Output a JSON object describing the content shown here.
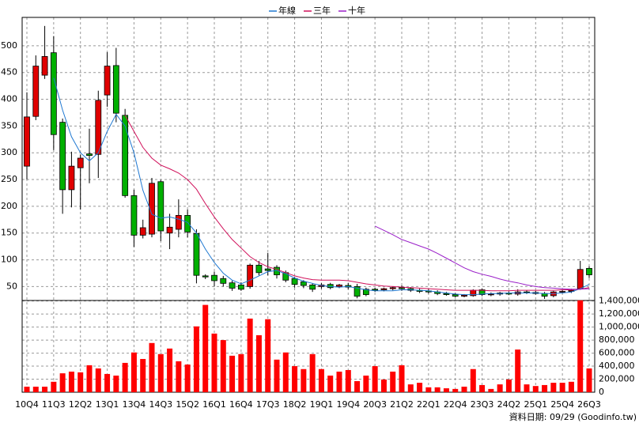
{
  "chart_data": {
    "type": "candlestick",
    "categories": [
      "10Q4",
      null,
      null,
      "11Q3",
      null,
      null,
      "12Q2",
      null,
      null,
      "13Q1",
      null,
      null,
      "13Q4",
      null,
      null,
      "14Q3",
      null,
      null,
      "15Q2",
      null,
      null,
      "16Q1",
      null,
      null,
      "16Q4",
      null,
      null,
      "17Q3",
      null,
      null,
      "18Q2",
      null,
      null,
      "19Q1",
      null,
      null,
      "19Q4",
      null,
      null,
      "20Q3",
      null,
      null,
      "21Q2",
      null,
      null,
      "22Q1",
      null,
      null,
      "22Q4",
      null,
      null,
      "23Q3",
      null,
      null,
      "24Q2",
      null,
      null,
      "25Q1",
      null,
      null,
      "25Q4",
      null,
      null,
      "26Q3"
    ],
    "open": [
      275,
      368,
      445,
      487,
      357,
      231,
      272,
      298,
      297,
      408,
      463,
      370,
      220,
      146,
      148,
      246,
      150,
      157,
      183,
      149,
      70,
      71,
      65,
      57,
      53,
      50,
      90,
      83,
      86,
      76,
      65,
      59,
      53,
      50,
      54,
      50,
      52,
      50,
      45,
      45,
      44,
      46,
      48,
      46,
      43,
      42,
      40,
      37,
      35,
      32,
      33,
      44,
      35,
      36,
      38,
      36,
      40,
      39,
      37,
      33,
      40,
      41,
      46,
      84
    ],
    "high": [
      413,
      482,
      537,
      518,
      364,
      302,
      297,
      345,
      416,
      488,
      496,
      382,
      231,
      175,
      253,
      249,
      186,
      213,
      194,
      157,
      73,
      78,
      70,
      61,
      58,
      93,
      98,
      113,
      90,
      80,
      68,
      62,
      56,
      57,
      57,
      55,
      57,
      55,
      48,
      48,
      48,
      50,
      52,
      49,
      46,
      45,
      43,
      40,
      38,
      36,
      45,
      46,
      39,
      40,
      41,
      45,
      43,
      42,
      40,
      42,
      44,
      46,
      98,
      88
    ],
    "low": [
      250,
      361,
      438,
      305,
      186,
      198,
      194,
      243,
      253,
      386,
      357,
      216,
      124,
      140,
      142,
      135,
      120,
      142,
      142,
      56,
      64,
      50,
      50,
      42,
      42,
      46,
      71,
      71,
      65,
      58,
      48,
      47,
      40,
      46,
      45,
      47,
      45,
      28,
      32,
      40,
      41,
      43,
      42,
      40,
      38,
      37,
      34,
      33,
      30,
      30,
      31,
      32,
      32,
      33,
      34,
      33,
      36,
      35,
      27,
      30,
      37,
      38,
      44,
      66
    ],
    "close": [
      367,
      462,
      480,
      334,
      231,
      275,
      290,
      295,
      398,
      462,
      374,
      220,
      146,
      160,
      243,
      154,
      161,
      183,
      152,
      71,
      68,
      61,
      56,
      47,
      45,
      90,
      76,
      80,
      72,
      62,
      54,
      52,
      45,
      53,
      48,
      53,
      49,
      32,
      35,
      43,
      46,
      48,
      46,
      43,
      41,
      40,
      37,
      35,
      32,
      34,
      43,
      35,
      36,
      38,
      36,
      40,
      39,
      37,
      32,
      40,
      41,
      43,
      82,
      72
    ],
    "up_color": "#e00000",
    "down_color": "#00b000",
    "series": [
      {
        "name": "年線",
        "color": "#1f78d1",
        "values": [
          null,
          null,
          null,
          440,
          380,
          330,
          300,
          285,
          300,
          340,
          372,
          350,
          300,
          230,
          185,
          178,
          180,
          176,
          170,
          150,
          120,
          95,
          75,
          62,
          55,
          62,
          70,
          78,
          80,
          74,
          66,
          60,
          56,
          52,
          50,
          49,
          50,
          47,
          44,
          42,
          42,
          42,
          44,
          44,
          43,
          42,
          40,
          38,
          36,
          35,
          35,
          36,
          37,
          37,
          38,
          38,
          38,
          38,
          37,
          37,
          38,
          40,
          46,
          54
        ]
      },
      {
        "name": "三年",
        "color": "#d0105a",
        "values": [
          null,
          null,
          null,
          null,
          null,
          null,
          null,
          null,
          null,
          null,
          null,
          370,
          340,
          310,
          290,
          277,
          270,
          262,
          250,
          232,
          205,
          180,
          158,
          138,
          122,
          106,
          95,
          87,
          82,
          76,
          70,
          66,
          63,
          62,
          62,
          62,
          61,
          58,
          55,
          53,
          51,
          50,
          49,
          48,
          47,
          46,
          45,
          44,
          43,
          43,
          43,
          43,
          42,
          42,
          42,
          43,
          43,
          43,
          43,
          43,
          44,
          44,
          45,
          48
        ]
      },
      {
        "name": "十年",
        "color": "#9a1fc8",
        "values": [
          null,
          null,
          null,
          null,
          null,
          null,
          null,
          null,
          null,
          null,
          null,
          null,
          null,
          null,
          null,
          null,
          null,
          null,
          null,
          null,
          null,
          null,
          null,
          null,
          null,
          null,
          null,
          null,
          null,
          null,
          null,
          null,
          null,
          null,
          null,
          null,
          null,
          null,
          null,
          163,
          155,
          147,
          138,
          132,
          126,
          120,
          112,
          103,
          94,
          85,
          78,
          73,
          69,
          64,
          60,
          57,
          53,
          50,
          48,
          47,
          46,
          45,
          45,
          46
        ]
      }
    ],
    "volume": {
      "color": "#ff0000",
      "values": [
        85000,
        85000,
        85000,
        160000,
        290000,
        316000,
        305000,
        414000,
        365000,
        280000,
        255000,
        450000,
        610000,
        510000,
        755000,
        585000,
        670000,
        475000,
        425000,
        1010000,
        1340000,
        900000,
        800000,
        560000,
        585000,
        1130000,
        875000,
        1120000,
        500000,
        610000,
        400000,
        355000,
        585000,
        355000,
        255000,
        316000,
        340000,
        170000,
        255000,
        400000,
        195000,
        316000,
        414000,
        120000,
        145000,
        75000,
        75000,
        60000,
        50000,
        85000,
        355000,
        110000,
        50000,
        120000,
        195000,
        655000,
        120000,
        95000,
        110000,
        145000,
        145000,
        160000,
        1410000,
        365000
      ]
    },
    "ylim": [
      24,
      553
    ],
    "yticks": [
      50,
      100,
      150,
      200,
      250,
      300,
      350,
      400,
      450,
      500
    ],
    "y2lim": [
      0,
      1420000
    ],
    "y2ticks": [
      {
        "value": 0,
        "label": "0"
      },
      {
        "value": 200000,
        "label": "200,000"
      },
      {
        "value": 400000,
        "label": "400,000"
      },
      {
        "value": 600000,
        "label": "600,000"
      },
      {
        "value": 800000,
        "label": "800,000"
      },
      {
        "value": 1000000,
        "label": "1,000,000"
      },
      {
        "value": 1200000,
        "label": "1,200,000"
      },
      {
        "value": 1400000,
        "label": "1,400,000"
      }
    ],
    "grid": true,
    "footer": "資料日期: 09/29 (Goodinfo.tw)"
  }
}
